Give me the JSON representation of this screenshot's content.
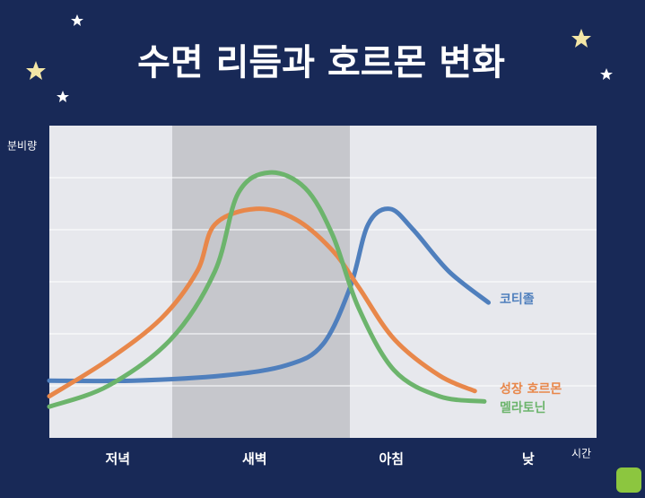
{
  "chart_data": {
    "type": "line",
    "title": "수면 리듬과 호르몬 변화",
    "y_label": "분비량",
    "x_label": "시간",
    "categories": [
      "저녁",
      "새벽",
      "아침",
      "낮"
    ],
    "xlim": [
      0,
      4
    ],
    "ylim": [
      0,
      6
    ],
    "yticks": [
      1,
      2,
      3,
      4,
      5
    ],
    "grid": true,
    "series": [
      {
        "name": "코티졸",
        "color": "#4f7fbd",
        "x": [
          0,
          0.62,
          1.28,
          1.74,
          2.0,
          2.2,
          2.33,
          2.49,
          2.66,
          2.92,
          3.21
        ],
        "values": [
          1.1,
          1.1,
          1.2,
          1.4,
          1.8,
          2.9,
          4.1,
          4.4,
          4.0,
          3.2,
          2.6
        ]
      },
      {
        "name": "성장 호르몬",
        "color": "#e8874a",
        "x": [
          0,
          0.43,
          0.82,
          1.08,
          1.21,
          1.51,
          1.8,
          2.07,
          2.26,
          2.52,
          2.85,
          3.11
        ],
        "values": [
          0.8,
          1.5,
          2.3,
          3.2,
          4.1,
          4.4,
          4.2,
          3.6,
          2.9,
          1.9,
          1.2,
          0.9
        ]
      },
      {
        "name": "멜라토닌",
        "color": "#6cb46c",
        "x": [
          0,
          0.43,
          0.89,
          1.21,
          1.38,
          1.61,
          1.87,
          2.07,
          2.26,
          2.52,
          2.85,
          3.18
        ],
        "values": [
          0.6,
          1.0,
          1.9,
          3.2,
          4.7,
          5.1,
          4.8,
          3.9,
          2.5,
          1.3,
          0.8,
          0.7
        ]
      }
    ]
  }
}
